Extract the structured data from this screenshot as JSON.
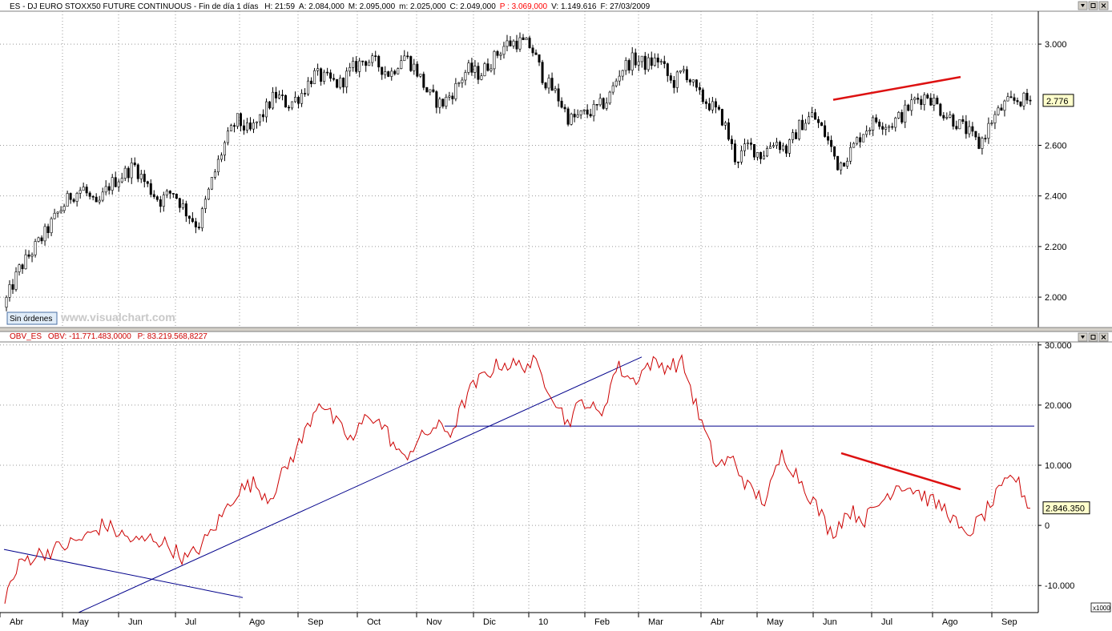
{
  "price_panel": {
    "header": "ES - DJ EURO STOXX50 FUTURE CONTINUOUS - Fin de día 1 días",
    "fields": [
      {
        "text": "H: 21:59",
        "color": "#000000"
      },
      {
        "text": "A: 2.084,000",
        "color": "#000000"
      },
      {
        "text": "M: 2.095,000",
        "color": "#000000"
      },
      {
        "text": "m: 2.025,000",
        "color": "#000000"
      },
      {
        "text": "C: 2.049,000",
        "color": "#000000"
      },
      {
        "text": "P : 3.069,000",
        "color": "#ff0000"
      },
      {
        "text": "V: 1.149.616",
        "color": "#000000"
      },
      {
        "text": "F: 27/03/2009",
        "color": "#000000"
      }
    ],
    "last_value_label": "2.776",
    "status_button": "Sin órdenes",
    "watermark": "www.visualchart.com"
  },
  "indicator_panel": {
    "title_name": "OBV_ES",
    "title_value": "OBV: -11.771.483,0000",
    "title_p": "P: 83.219.568,8227",
    "last_value_label": "2.846.350",
    "scale_label": "x1000"
  },
  "window_icons": [
    "scroll-down-icon",
    "restore-icon",
    "close-icon"
  ],
  "colors": {
    "candles": "#000000",
    "obv_line": "#cc0000",
    "trendline_red": "#dd1111",
    "trendline_blue": "#00008b",
    "grid": "#999999",
    "value_box": "#ffffcc"
  },
  "chart_data": [
    {
      "type": "candlestick",
      "title": "ES - DJ EURO STOXX50 FUTURE CONTINUOUS",
      "x_ticks": [
        "Abr",
        "May",
        "Jun",
        "Jul",
        "Ago",
        "Sep",
        "Oct",
        "Nov",
        "Dic",
        "10",
        "Feb",
        "Mar",
        "Abr",
        "May",
        "Jun",
        "Jul",
        "Ago",
        "Sep"
      ],
      "y_ticks": [
        "2.000",
        "2.200",
        "2.400",
        "2.600",
        "3.000"
      ],
      "ylim": [
        1880,
        3130
      ],
      "grid": true,
      "series": [
        {
          "values": [
            1990,
            2110,
            2180,
            2250,
            2330,
            2400,
            2430,
            2350,
            2440,
            2480,
            2520,
            2440,
            2380,
            2420,
            2340,
            2280,
            2450,
            2600,
            2700,
            2650,
            2720,
            2800,
            2760,
            2800,
            2880,
            2860,
            2840,
            2900,
            2940,
            2920,
            2880,
            2960,
            2900,
            2800,
            2760,
            2820,
            2900,
            2880,
            2940,
            3000,
            3010,
            2990,
            2860,
            2800,
            2700,
            2720,
            2740,
            2780,
            2900,
            2940,
            2920,
            2940,
            2840,
            2900,
            2800,
            2760,
            2700,
            2540,
            2600,
            2560,
            2620,
            2580,
            2680,
            2720,
            2640,
            2520,
            2580,
            2660,
            2700,
            2680,
            2720,
            2780,
            2800,
            2740,
            2700,
            2660,
            2600,
            2700,
            2760,
            2780,
            2776
          ]
        }
      ],
      "annotations": [
        {
          "type": "trendline",
          "color": "red",
          "from": {
            "x": "Jun",
            "y": 2780
          },
          "to": {
            "x": "Ago",
            "y": 2870
          }
        }
      ]
    },
    {
      "type": "line",
      "title": "OBV_ES",
      "x_ticks": [
        "Abr",
        "May",
        "Jun",
        "Jul",
        "Ago",
        "Sep",
        "Oct",
        "Nov",
        "Dic",
        "10",
        "Feb",
        "Mar",
        "Abr",
        "May",
        "Jun",
        "Jul",
        "Ago",
        "Sep"
      ],
      "y_ticks": [
        "-10.000",
        "0",
        "10.000",
        "20.000",
        "30.000"
      ],
      "ylim": [
        -14500,
        30500
      ],
      "grid": true,
      "series": [
        {
          "values": [
            -11800,
            -6000,
            -4800,
            -4000,
            -3000,
            -1800,
            200,
            -1500,
            -2800,
            -2000,
            -3600,
            -5800,
            -3000,
            1000,
            5500,
            7000,
            4500,
            9500,
            14500,
            21000,
            17000,
            14000,
            18800,
            16000,
            11000,
            14000,
            16500,
            15500,
            22000,
            25000,
            27000,
            26500,
            27000,
            22500,
            17000,
            21000,
            18000,
            26500,
            24000,
            27000,
            26500,
            27000,
            18000,
            10000,
            11000,
            6000,
            4000,
            12000,
            8000,
            3500,
            -1500,
            2500,
            1000,
            4000,
            7000,
            6000,
            4000,
            2500,
            -2000,
            1000,
            5000,
            8500,
            2846
          ]
        }
      ],
      "annotations": [
        {
          "type": "trendline",
          "color": "blue",
          "from": {
            "x": "Abr",
            "y": -4000
          },
          "to": {
            "x": "Ago",
            "y": -12000
          }
        },
        {
          "type": "trendline",
          "color": "blue",
          "from": {
            "x": "May",
            "y": -14500
          },
          "to": {
            "x": "Mar",
            "y": 28000
          }
        },
        {
          "type": "horizontal-line",
          "color": "blue",
          "y": 16500
        },
        {
          "type": "trendline",
          "color": "red",
          "from": {
            "x": "Jun",
            "y": 12000
          },
          "to": {
            "x": "Ago",
            "y": 6000
          }
        }
      ]
    }
  ]
}
